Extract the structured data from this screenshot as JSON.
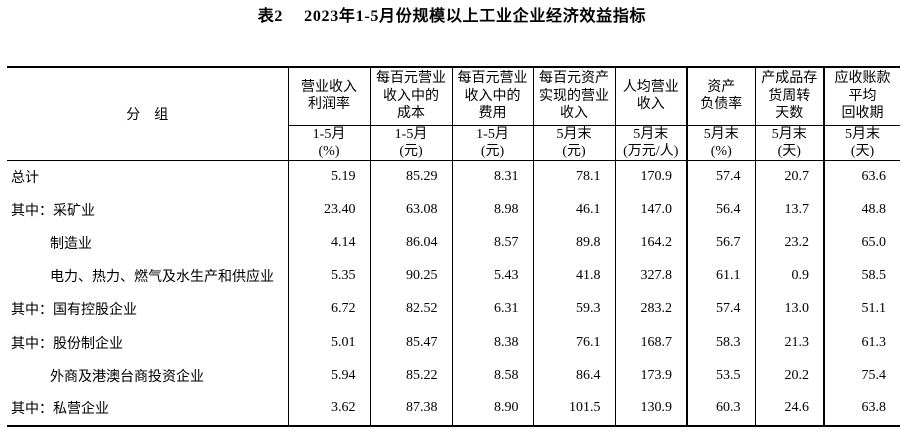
{
  "page": {
    "background_color": "#ffffff",
    "text_color": "#000000",
    "rule_color": "#000000"
  },
  "title": {
    "prefix": "表2",
    "text": "2023年1-5月份规模以上工业企业经济效益指标"
  },
  "table": {
    "stub_header": "分　组",
    "columns": [
      {
        "name_lines": [
          "营业收入",
          "利润率"
        ],
        "unit_lines": [
          "1-5月",
          "(%)"
        ]
      },
      {
        "name_lines": [
          "每百元营业",
          "收入中的",
          "成本"
        ],
        "unit_lines": [
          "1-5月",
          "(元)"
        ]
      },
      {
        "name_lines": [
          "每百元营业",
          "收入中的",
          "费用"
        ],
        "unit_lines": [
          "1-5月",
          "(元)"
        ]
      },
      {
        "name_lines": [
          "每百元资产",
          "实现的营业",
          "收入"
        ],
        "unit_lines": [
          "5月末",
          "(元)"
        ]
      },
      {
        "name_lines": [
          "人均营业",
          "收入"
        ],
        "unit_lines": [
          "5月末",
          "(万元/人)"
        ]
      },
      {
        "name_lines": [
          "资产",
          "负债率"
        ],
        "unit_lines": [
          "5月末",
          "(%)"
        ]
      },
      {
        "name_lines": [
          "产成品存",
          "货周转",
          "天数"
        ],
        "unit_lines": [
          "5月末",
          "(天)"
        ]
      },
      {
        "name_lines": [
          "应收账款",
          "平均",
          "回收期"
        ],
        "unit_lines": [
          "5月末",
          "(天)"
        ]
      }
    ],
    "rows": [
      {
        "label": "总计",
        "indent": 0,
        "values": [
          "5.19",
          "85.29",
          "8.31",
          "78.1",
          "170.9",
          "57.4",
          "20.7",
          "63.6"
        ]
      },
      {
        "label": "其中：采矿业",
        "indent": 0,
        "values": [
          "23.40",
          "63.08",
          "8.98",
          "46.1",
          "147.0",
          "56.4",
          "13.7",
          "48.8"
        ]
      },
      {
        "label": "制造业",
        "indent": 1,
        "values": [
          "4.14",
          "86.04",
          "8.57",
          "89.8",
          "164.2",
          "56.7",
          "23.2",
          "65.0"
        ]
      },
      {
        "label": "电力、热力、燃气及水生产和供应业",
        "indent": 1,
        "values": [
          "5.35",
          "90.25",
          "5.43",
          "41.8",
          "327.8",
          "61.1",
          "0.9",
          "58.5"
        ]
      },
      {
        "label": "其中：国有控股企业",
        "indent": 0,
        "values": [
          "6.72",
          "82.52",
          "6.31",
          "59.3",
          "283.2",
          "57.4",
          "13.0",
          "51.1"
        ]
      },
      {
        "label": "其中：股份制企业",
        "indent": 0,
        "values": [
          "5.01",
          "85.47",
          "8.38",
          "76.1",
          "168.7",
          "58.3",
          "21.3",
          "61.3"
        ]
      },
      {
        "label": "外商及港澳台商投资企业",
        "indent": 1,
        "values": [
          "5.94",
          "85.22",
          "8.58",
          "86.4",
          "173.9",
          "53.5",
          "20.2",
          "75.4"
        ]
      },
      {
        "label": "其中：私营企业",
        "indent": 0,
        "values": [
          "3.62",
          "87.38",
          "8.90",
          "101.5",
          "130.9",
          "60.3",
          "24.6",
          "63.8"
        ]
      }
    ]
  }
}
